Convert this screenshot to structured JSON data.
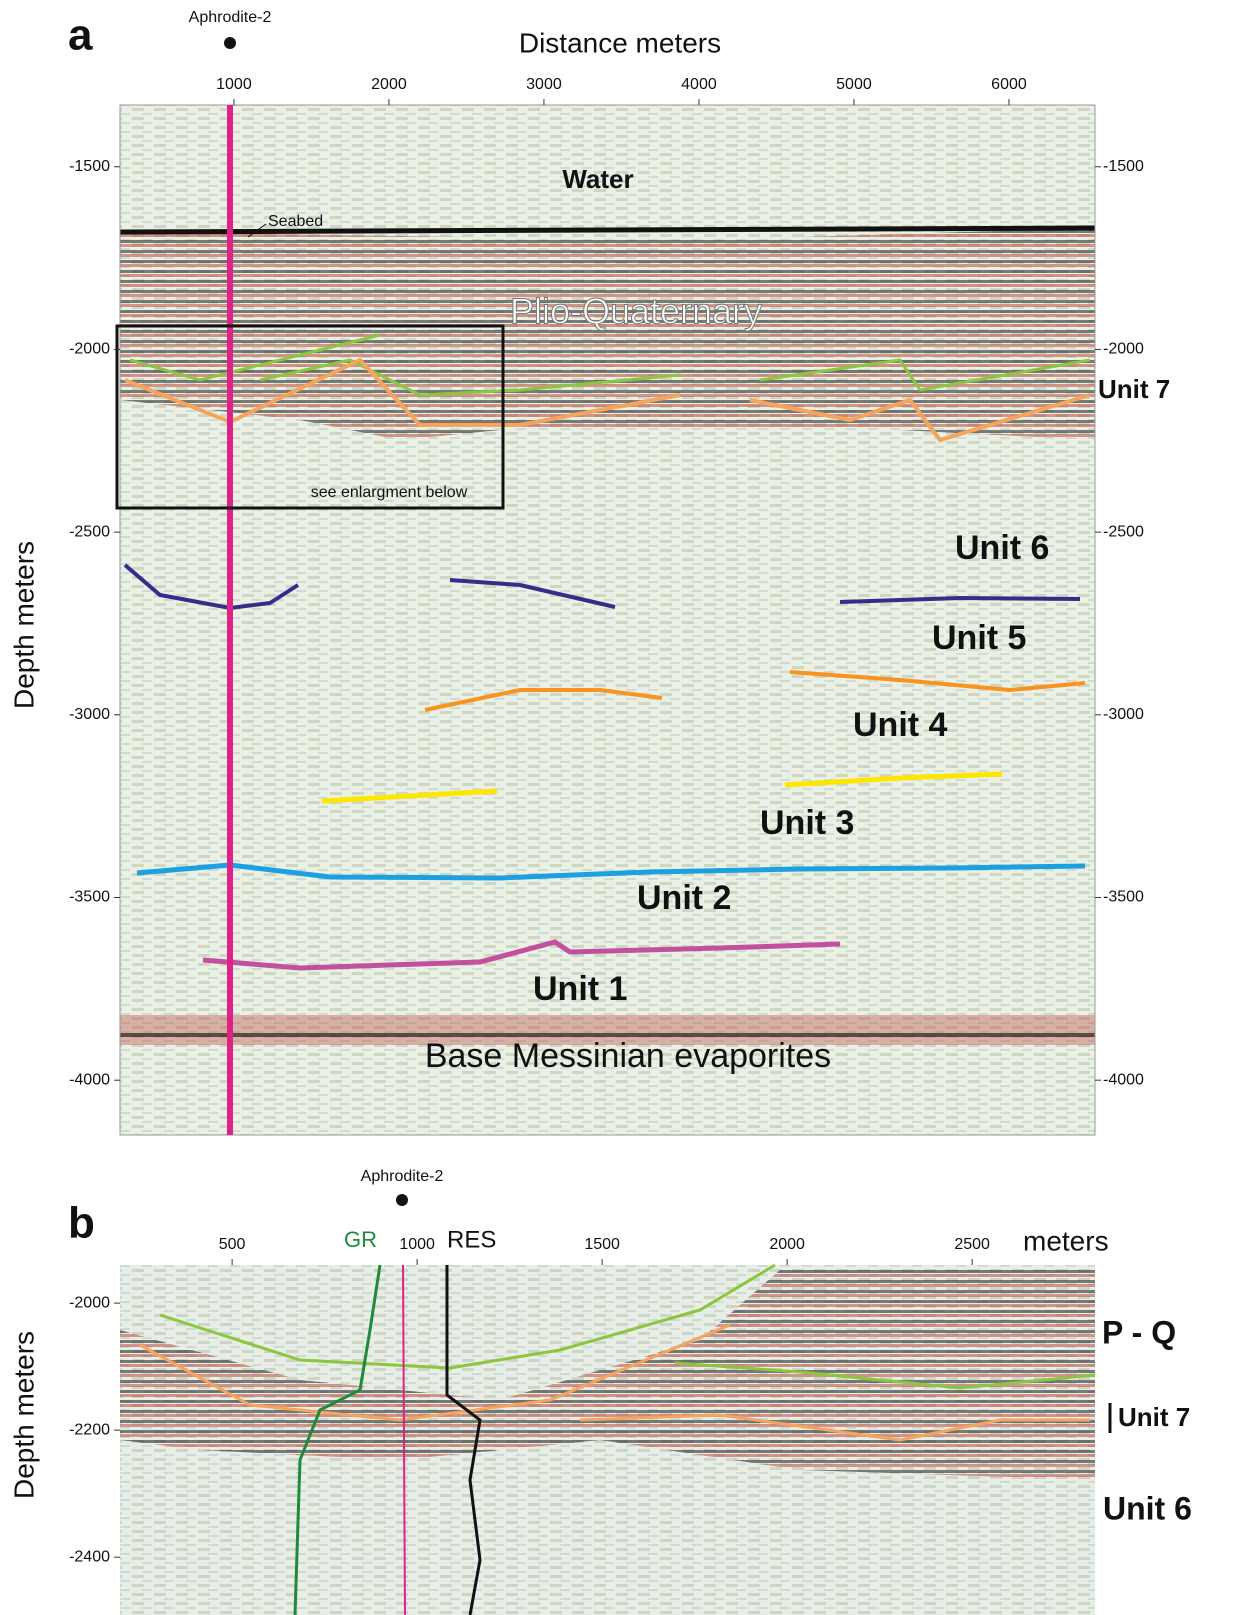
{
  "panels": [
    {
      "label": "a",
      "well": "Aphrodite-2",
      "x_title": "Distance meters",
      "y_title": "Depth meters",
      "xlim": [
        265,
        6555
      ],
      "ylim": [
        -1331,
        -4150
      ],
      "xticks": [
        1000,
        2000,
        3000,
        4000,
        5000,
        6000
      ],
      "yticks": [
        -1500,
        -2000,
        -2500,
        -3000,
        -3500,
        -4000
      ],
      "annotations": [
        "Water",
        "Seabed",
        "Plio-Quaternary",
        "see enlargment below",
        "Unit 7",
        "Unit 6",
        "Unit 5",
        "Unit 4",
        "Unit 3",
        "Unit 2",
        "Unit 1",
        "Base Messinian evaporites"
      ]
    },
    {
      "label": "b",
      "well": "Aphrodite-2",
      "x_title": "meters",
      "y_title": "Depth meters",
      "xlim": [
        197,
        2832
      ],
      "ylim": [
        -1940,
        -2491
      ],
      "xticks": [
        500,
        1000,
        1500,
        2000,
        2500
      ],
      "yticks": [
        -2000,
        -2200,
        -2400
      ],
      "annotations": [
        "GR",
        "RES",
        "P - Q",
        "Unit 7",
        "Unit 6"
      ]
    }
  ]
}
